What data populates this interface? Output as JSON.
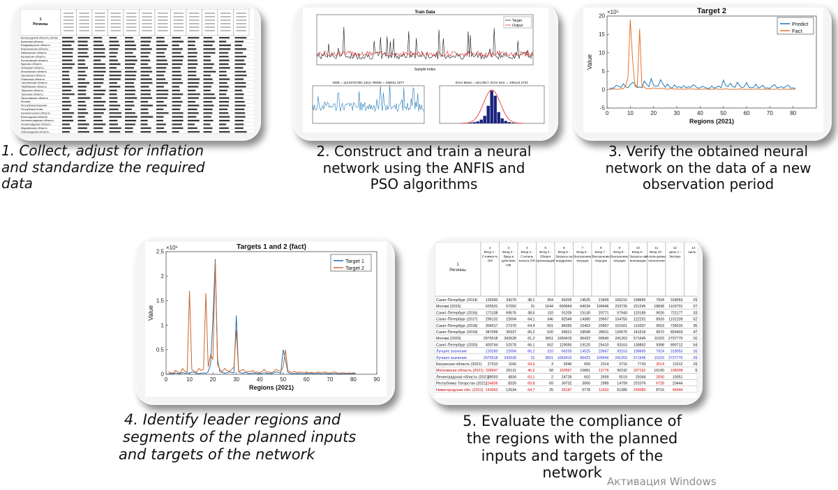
{
  "steps": [
    {
      "number": "1.",
      "text_lines": [
        "Collect, adjust for inflation",
        "and standardize  the required",
        "data"
      ]
    },
    {
      "number": "2.",
      "text_lines": [
        "Construct and train a neural",
        "network using the ANFIS and",
        "PSO algorithms"
      ]
    },
    {
      "number": "3.",
      "text_lines": [
        "Verify the obtained neural",
        "network on the data of a new",
        "observation period"
      ]
    },
    {
      "number": "4.",
      "text_lines": [
        "Identify leader regions and",
        "segments of the planned inputs",
        "and targets of the network"
      ]
    },
    {
      "number": "5.",
      "text_lines": [
        "Evaluate the compliance of",
        "the regions with the planned",
        "inputs and targets of the",
        "network"
      ]
    }
  ],
  "watermark": "Активация Windows",
  "panel1": {
    "header_cell": "1\nРегионы",
    "rows": [
      "Белгородская область (2018)",
      "Брянская область",
      "Владимирская область",
      "Воронежская область",
      "Ивановская область",
      "Калужская область",
      "Костромская область",
      "Курская область",
      "Липецкая область",
      "Московская область",
      "Орловская область",
      "Рязанская область",
      "Смоленская область",
      "Тамбовская область",
      "Тверская область",
      "Тульская область",
      "Ярославская область",
      "Москва",
      "Республика Карелия",
      "Республика Коми",
      "Архангельская область",
      "Вологодская область",
      "Калининградская область",
      "Ленинградская область",
      "Мурманская область",
      "Новгородская область",
      "Псковская область",
      "Республика Адыгея",
      "Республика Калмыкия"
    ]
  },
  "panel2": {
    "top_title": "Train Data",
    "top_legend": [
      "Target",
      "Output"
    ],
    "top_xlabel": "Sample index",
    "bottom_left_title": "MSE = 11244767391.1613, RMSE = 106041.3277",
    "bottom_right_title": "Error Mean = 184.2817, Error St.D. = 106124.2724"
  },
  "chart3": {
    "type": "line",
    "title": "Target 2",
    "xlabel": "Regions (2021)",
    "ylabel": "Value",
    "exponent": "×10⁵",
    "xlim": [
      0,
      90
    ],
    "ylim": [
      -5,
      20
    ],
    "xticks": [
      0,
      10,
      20,
      30,
      40,
      50,
      60,
      70,
      80
    ],
    "yticks": [
      -5,
      0,
      5,
      10,
      15,
      20
    ],
    "colors": {
      "Predict": "#1f77b4",
      "Fact": "#e8702a"
    },
    "series": [
      {
        "name": "Predict",
        "values": [
          0.3,
          0.4,
          0.5,
          1.2,
          0.9,
          0.6,
          1.6,
          0.8,
          0.5,
          1.4,
          2.0,
          1.5,
          0.6,
          0.7,
          0.5,
          2.3,
          1.5,
          0.8,
          3.0,
          1.2,
          0.9,
          1.0,
          2.7,
          1.6,
          0.6,
          1.5,
          0.7,
          0.4,
          1.3,
          0.6,
          0.8,
          0.5,
          1.1,
          0.5,
          0.8,
          0.6,
          1.3,
          0.9,
          0.4,
          0.5,
          0.9,
          0.6,
          0.4,
          0.3,
          1.0,
          0.4,
          0.6,
          1.0,
          0.5,
          2.6,
          1.2,
          0.8,
          1.7,
          0.9,
          0.6,
          2.0,
          1.1,
          0.5,
          0.8,
          1.9,
          0.7,
          0.5,
          0.6,
          1.5,
          0.4,
          0.7,
          1.2,
          0.4,
          0.5,
          0.3,
          0.9,
          1.4,
          0.5,
          0.6,
          0.8,
          0.4,
          1.0,
          1.2,
          0.4,
          0.5,
          0.3
        ]
      },
      {
        "name": "Fact",
        "values": [
          0.1,
          0.1,
          0.2,
          0.1,
          0.1,
          0.3,
          0.2,
          1.0,
          3.5,
          19.0,
          8.0,
          1.0,
          0.5,
          16.5,
          0.8,
          0.7,
          0.2,
          0.3,
          0.2,
          0.5,
          0.3,
          0.2,
          0.4,
          0.3,
          0.2,
          0.1,
          0.2,
          0.3,
          0.1,
          0.2,
          0.1,
          0.2,
          0.1,
          0.1,
          0.3,
          0.1,
          0.2,
          0.1,
          0.1,
          0.1,
          0.1,
          0.2,
          0.1,
          0.1,
          0.1,
          0.1,
          0.2,
          0.1,
          0.1,
          0.1,
          0.3,
          0.1,
          0.1,
          0.1,
          0.1,
          0.1,
          0.2,
          0.1,
          0.1,
          0.1,
          0.1,
          0.1,
          0.1,
          0.2,
          0.1,
          0.1,
          0.1,
          0.1,
          0.1,
          0.1,
          0.1,
          0.1,
          0.2,
          0.1,
          0.1,
          0.1,
          0.1,
          0.1,
          0.1,
          0.1,
          0.1
        ]
      }
    ]
  },
  "chart4": {
    "type": "line",
    "title": "Targets 1 and 2 (fact)",
    "xlabel": "Regions (2021)",
    "ylabel": "Value",
    "exponent": "×10⁶",
    "xlim": [
      0,
      90
    ],
    "ylim": [
      0,
      2.5
    ],
    "xticks": [
      0,
      10,
      20,
      30,
      40,
      50,
      60,
      70,
      80,
      90
    ],
    "yticks": [
      0,
      0.5,
      1,
      1.5,
      2,
      2.5
    ],
    "colors": {
      "Target 1": "#1f6fb4",
      "Target 2": "#c8652a"
    },
    "series": [
      {
        "name": "Target 1",
        "values": [
          0.01,
          0.02,
          0.01,
          0.03,
          0.02,
          0.01,
          0.04,
          0.02,
          0.03,
          0.02,
          0.05,
          0.04,
          0.02,
          0.01,
          0.02,
          0.03,
          0.02,
          0.05,
          0.2,
          1.1,
          2.35,
          0.3,
          0.05,
          0.04,
          0.02,
          0.03,
          0.05,
          0.04,
          0.03,
          1.2,
          0.05,
          0.03,
          0.02,
          0.04,
          0.02,
          0.01,
          0.03,
          0.02,
          0.02,
          0.01,
          0.02,
          0.03,
          0.02,
          0.02,
          0.01,
          0.03,
          0.05,
          0.04,
          0.02,
          0.5,
          0.3,
          0.04,
          0.02,
          0.01,
          0.02,
          0.01,
          0.02,
          0.01,
          0.01,
          0.02,
          0.01,
          0.02,
          0.01,
          0.01,
          0.02,
          0.01,
          0.01,
          0.02,
          0.01,
          0.01,
          0.01,
          0.02,
          0.01,
          0.01,
          0.01,
          0.01,
          0.01,
          0.01,
          0.01,
          0.01,
          0.01
        ]
      },
      {
        "name": "Target 2",
        "values": [
          0.05,
          0.03,
          0.02,
          0.08,
          0.05,
          0.02,
          0.12,
          0.06,
          0.05,
          1.7,
          0.1,
          0.06,
          0.04,
          0.12,
          0.08,
          0.1,
          1.65,
          0.15,
          0.4,
          0.3,
          2.3,
          0.2,
          0.1,
          0.05,
          0.12,
          0.08,
          0.06,
          0.1,
          0.15,
          0.9,
          0.05,
          0.08,
          0.1,
          0.04,
          0.06,
          0.05,
          0.08,
          0.04,
          0.05,
          0.03,
          0.06,
          0.1,
          0.04,
          0.05,
          0.03,
          0.06,
          0.1,
          0.08,
          0.06,
          0.15,
          0.5,
          0.08,
          0.05,
          0.04,
          0.06,
          0.03,
          0.05,
          0.04,
          0.03,
          0.05,
          0.03,
          0.04,
          0.03,
          0.03,
          0.05,
          0.03,
          0.04,
          0.05,
          0.03,
          0.02,
          0.04,
          0.05,
          0.03,
          0.02,
          0.03,
          0.03,
          0.02,
          0.03,
          0.02,
          0.03,
          0.02
        ]
      }
    ]
  },
  "panel5": {
    "col_headers": [
      "1\nРегионы",
      "2\nВход 1 -\nСтоимость\nОФ",
      "3\nВход 2 -\nВвод в\nдействие\nОФ",
      "4\nВход 3 -\nСтепень\nизноса ОФ",
      "5\nВход 4 -\nОборот\nорганизаций",
      "6\nВход 5 -\nЗатраты на\nвнедрение",
      "7\nВход 6 -\nВнутренние\nтекущие",
      "8\nВход 7 -\nВнутренние\nтекущие",
      "9\nВход 8 -\nВнутренние\nтекущие",
      "10\nВход 9 -\nЗатраты на\nинновации",
      "11\nВход 10 -\nИспользуемые\nтехнологии",
      "12\nЦель 1 -\nЭкспорт",
      "13\nЦель 2"
    ],
    "rows": [
      {
        "region": "Санкт-Петербург (2014)",
        "vals": [
          "130260",
          "34279",
          "38,1",
          "354",
          "66205",
          "14525",
          "21809",
          "106210",
          "108665",
          "7924",
          "318053",
          "2947"
        ],
        "style": "normal"
      },
      {
        "region": "Москва (2015)",
        "vals": [
          "625531",
          "67092",
          "31",
          "1644",
          "600664",
          "64034",
          "100646",
          "233726",
          "231245",
          "18838",
          "1103701",
          "3747"
        ],
        "style": "normal"
      },
      {
        "region": "Санкт-Петербург (2016)",
        "vals": [
          "171108",
          "69576",
          "38,5",
          "110",
          "91205",
          "15130",
          "20771",
          "57943",
          "120185",
          "9026",
          "721177",
          "3358"
        ],
        "style": "normal"
      },
      {
        "region": "Санкт-Петербург (2017)",
        "vals": [
          "296132",
          "22694",
          "64,1",
          "346",
          "82049",
          "14380",
          "20667",
          "104755",
          "122252",
          "8933",
          "1101239",
          "5267"
        ],
        "style": "normal"
      },
      {
        "region": "Санкт-Петербург (2018)",
        "vals": [
          "304317",
          "27370",
          "64,4",
          "601",
          "84365",
          "15403",
          "20957",
          "101501",
          "110337",
          "9553",
          "735010",
          "3537"
        ],
        "style": "normal"
      },
      {
        "region": "Санкт-Петербург (2019)",
        "vals": [
          "347059",
          "30337",
          "66,2",
          "620",
          "99521",
          "18598",
          "28011",
          "120675",
          "141616",
          "9972",
          "826403",
          "4757"
        ],
        "style": "normal"
      },
      {
        "region": "Москва (2020)",
        "vals": [
          "2975518",
          "342628",
          "61,2",
          "3651",
          "1650415",
          "96423",
          "99540",
          "241263",
          "571645",
          "11023",
          "2737770",
          "1678"
        ],
        "style": "normal"
      },
      {
        "region": "Санкт-Петербург (2020)",
        "vals": [
          "400744",
          "52578",
          "66,1",
          "652",
          "129055",
          "19120",
          "25410",
          "93163",
          "138892",
          "9398",
          "890712",
          "5447"
        ],
        "style": "normal"
      },
      {
        "region": "Лучшее значение",
        "vals": [
          "130260",
          "22694",
          "66,2",
          "310",
          "66205",
          "14525",
          "20667",
          "93163",
          "108665",
          "7924",
          "318053",
          "1678"
        ],
        "style": "blue"
      },
      {
        "region": "Лучшее значение",
        "vals": [
          "2975518",
          "342628",
          "31",
          "3651",
          "1650415",
          "96423",
          "100646",
          "241263",
          "571645",
          "11023",
          "2737770",
          "2946"
        ],
        "style": "blue"
      },
      {
        "region": "Калужская область (2021)",
        "vals": [
          "27310",
          "1166",
          "59,6",
          "3",
          "9346",
          "609",
          "2314",
          "3716",
          "7733",
          "3514",
          "11012",
          "2903"
        ],
        "style": "mixed"
      },
      {
        "region": "Московская область (2021)",
        "vals": [
          "328647",
          "20131",
          "46,6",
          "58",
          "160567",
          "15881",
          "13778",
          "90192",
          "207162",
          "16190",
          "106008",
          "937"
        ],
        "style": "redrow"
      },
      {
        "region": "Ленинградская область (2021)",
        "vals": [
          "39053",
          "4834",
          "63,1",
          "2",
          "24726",
          "602",
          "2959",
          "5519",
          "25044",
          "2830",
          "10051",
          "1"
        ],
        "style": "mixed"
      },
      {
        "region": "Республика Татарстан (2021)",
        "vals": [
          "134806",
          "8326",
          "69,8",
          "69",
          "39732",
          "3060",
          "2989",
          "14799",
          "201076",
          "6728",
          "20444",
          "2"
        ],
        "style": "mixed"
      },
      {
        "region": "Нижегородская обл. (2021)",
        "vals": [
          "143063",
          "12534",
          "64,7",
          "25",
          "35187",
          "5778",
          "11933",
          "61386",
          "240083",
          "8716",
          "46944",
          "2"
        ],
        "style": "redrow"
      }
    ]
  }
}
